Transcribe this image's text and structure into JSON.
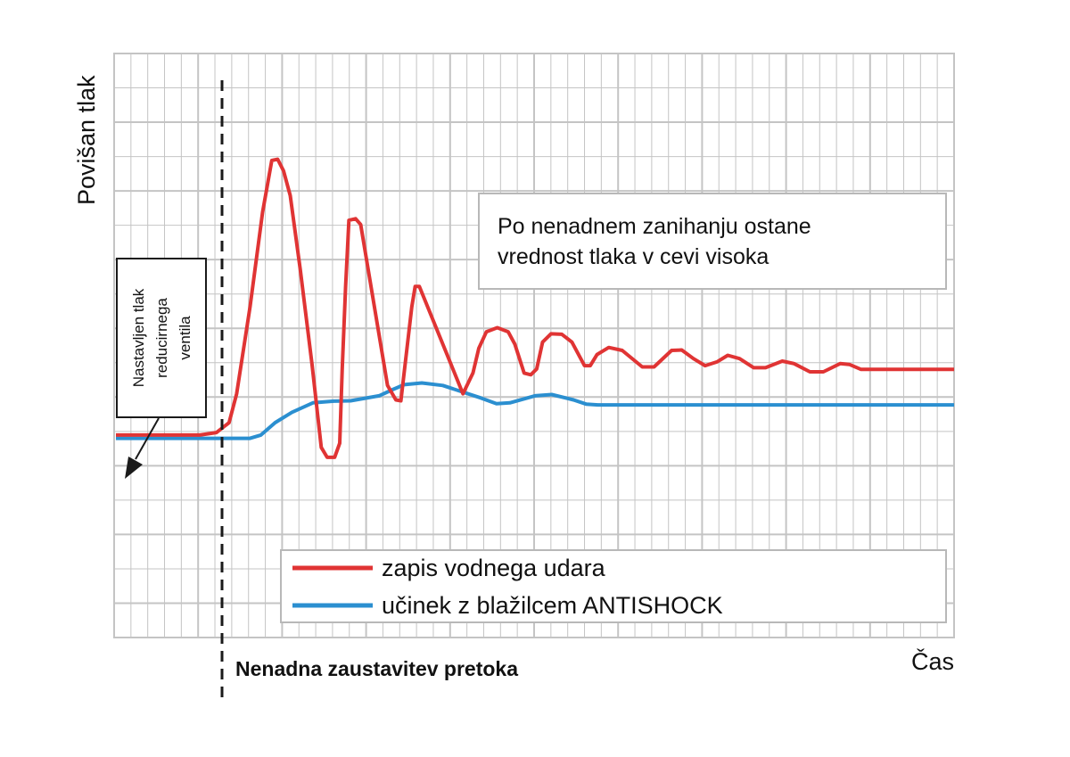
{
  "chart_data": {
    "type": "line",
    "ylabel": "Povišan tlak",
    "xlabel": "Čas",
    "xlim": [
      0,
      100
    ],
    "ylim": [
      0,
      100
    ],
    "colors": {
      "red": "#e03434",
      "blue": "#2b8fd0",
      "grid": "#c4c4c4"
    },
    "series": [
      {
        "name": "zapis vodnega udara",
        "color": "#e03434",
        "points": [
          [
            0,
            24
          ],
          [
            10,
            24
          ],
          [
            12,
            24.6
          ],
          [
            13.5,
            27
          ],
          [
            14.4,
            34
          ],
          [
            16,
            55
          ],
          [
            17.5,
            78
          ],
          [
            18.6,
            90.5
          ],
          [
            19.3,
            90.8
          ],
          [
            20,
            88
          ],
          [
            20.8,
            82
          ],
          [
            22,
            64
          ],
          [
            23.4,
            41
          ],
          [
            24.5,
            21
          ],
          [
            25.2,
            18.6
          ],
          [
            26.1,
            18.6
          ],
          [
            26.7,
            22
          ],
          [
            27,
            40
          ],
          [
            27.4,
            60
          ],
          [
            27.8,
            76
          ],
          [
            28.6,
            76.4
          ],
          [
            29.2,
            75
          ],
          [
            32.4,
            36
          ],
          [
            33.4,
            32.5
          ],
          [
            34,
            32.3
          ],
          [
            35.3,
            55
          ],
          [
            35.7,
            60
          ],
          [
            36.2,
            60
          ],
          [
            41.4,
            34
          ],
          [
            42.6,
            39
          ],
          [
            43.3,
            45
          ],
          [
            44.2,
            49
          ],
          [
            45.5,
            50
          ],
          [
            46.8,
            49
          ],
          [
            47.6,
            46
          ],
          [
            48.7,
            39
          ],
          [
            49.5,
            38.6
          ],
          [
            50.2,
            40
          ],
          [
            50.9,
            46.5
          ],
          [
            51.9,
            48.5
          ],
          [
            53.2,
            48.4
          ],
          [
            54.4,
            46.5
          ],
          [
            55.9,
            40.8
          ],
          [
            56.6,
            40.8
          ],
          [
            57.4,
            43.5
          ],
          [
            58.8,
            45.2
          ],
          [
            60.4,
            44.5
          ],
          [
            62.8,
            40.5
          ],
          [
            64.2,
            40.5
          ],
          [
            66.3,
            44.5
          ],
          [
            67.5,
            44.6
          ],
          [
            68.9,
            42.5
          ],
          [
            70.3,
            40.8
          ],
          [
            71.7,
            41.7
          ],
          [
            73,
            43.3
          ],
          [
            74.4,
            42.5
          ],
          [
            76.1,
            40.3
          ],
          [
            77.5,
            40.3
          ],
          [
            79.5,
            41.9
          ],
          [
            80.9,
            41.3
          ],
          [
            82.8,
            39.3
          ],
          [
            84.4,
            39.3
          ],
          [
            86.4,
            41.3
          ],
          [
            87.5,
            41.1
          ],
          [
            88.9,
            39.9
          ],
          [
            100,
            39.9
          ]
        ]
      },
      {
        "name": "učinek z blažilcem ANTISHOCK",
        "color": "#2b8fd0",
        "points": [
          [
            0,
            23.2
          ],
          [
            16,
            23.2
          ],
          [
            17.3,
            24
          ],
          [
            19,
            27
          ],
          [
            21,
            29.5
          ],
          [
            23.5,
            31.8
          ],
          [
            26,
            32.2
          ],
          [
            28,
            32.3
          ],
          [
            31.4,
            33.5
          ],
          [
            33,
            35
          ],
          [
            34.4,
            36.2
          ],
          [
            36.5,
            36.6
          ],
          [
            39,
            36
          ],
          [
            43.5,
            33
          ],
          [
            45.4,
            31.6
          ],
          [
            47,
            31.8
          ],
          [
            50,
            33.5
          ],
          [
            52,
            33.8
          ],
          [
            54.6,
            32.5
          ],
          [
            56.1,
            31.5
          ],
          [
            57.5,
            31.3
          ],
          [
            100,
            31.3
          ]
        ]
      }
    ],
    "annotations": {
      "box_text": [
        "Po nenadnem zanihanju ostane",
        "vrednost tlaka v cevi visoka"
      ],
      "setpoint_text": [
        "Nastavljen tlak",
        "reducirnega",
        "ventila"
      ],
      "stop_label": "Nenadna zaustavitev pretoka"
    },
    "grid": true,
    "legend_position": "bottom-right"
  }
}
